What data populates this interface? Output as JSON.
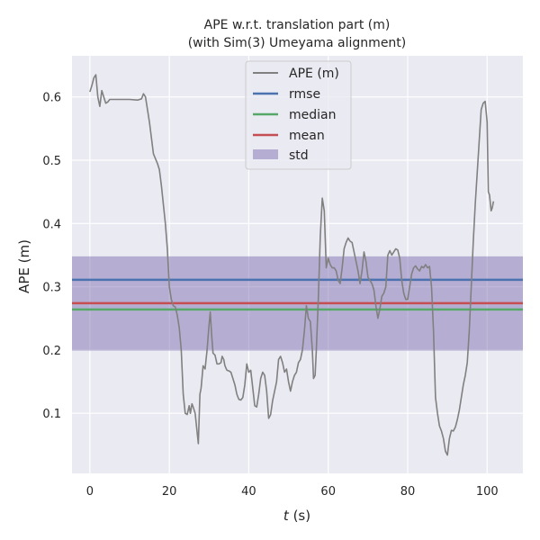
{
  "chart_data": {
    "type": "line",
    "title": "APE w.r.t. translation part (m)",
    "subtitle": "(with Sim(3) Umeyama alignment)",
    "xlabel_var": "t",
    "xlabel_unit": " (s)",
    "ylabel": "APE (m)",
    "xlim": [
      -4.5,
      109
    ],
    "ylim": [
      0.005,
      0.665
    ],
    "x_ticks": [
      0,
      20,
      40,
      60,
      80,
      100
    ],
    "y_ticks": [
      0.1,
      0.2,
      0.3,
      0.4,
      0.5,
      0.6
    ],
    "grid": true,
    "legend_position": "top-center",
    "series": [
      {
        "name": "APE (m)",
        "color": "#808080",
        "points": [
          [
            0.0,
            0.608
          ],
          [
            0.5,
            0.618
          ],
          [
            1.0,
            0.63
          ],
          [
            1.5,
            0.635
          ],
          [
            2.0,
            0.6
          ],
          [
            2.5,
            0.585
          ],
          [
            3.0,
            0.61
          ],
          [
            3.5,
            0.6
          ],
          [
            4.0,
            0.59
          ],
          [
            4.5,
            0.592
          ],
          [
            5.0,
            0.596
          ],
          [
            6.0,
            0.596
          ],
          [
            8.0,
            0.596
          ],
          [
            10.0,
            0.596
          ],
          [
            12.0,
            0.595
          ],
          [
            13.0,
            0.597
          ],
          [
            13.5,
            0.605
          ],
          [
            14.0,
            0.6
          ],
          [
            15.0,
            0.56
          ],
          [
            16.0,
            0.51
          ],
          [
            17.0,
            0.495
          ],
          [
            17.5,
            0.485
          ],
          [
            18.0,
            0.46
          ],
          [
            19.0,
            0.4
          ],
          [
            19.5,
            0.36
          ],
          [
            20.0,
            0.3
          ],
          [
            20.5,
            0.28
          ],
          [
            21.0,
            0.27
          ],
          [
            21.5,
            0.268
          ],
          [
            22.0,
            0.255
          ],
          [
            22.5,
            0.235
          ],
          [
            23.0,
            0.2
          ],
          [
            23.5,
            0.13
          ],
          [
            24.0,
            0.1
          ],
          [
            24.5,
            0.098
          ],
          [
            25.0,
            0.112
          ],
          [
            25.3,
            0.1
          ],
          [
            25.7,
            0.115
          ],
          [
            26.0,
            0.11
          ],
          [
            26.5,
            0.1
          ],
          [
            27.0,
            0.07
          ],
          [
            27.3,
            0.052
          ],
          [
            27.7,
            0.13
          ],
          [
            28.0,
            0.14
          ],
          [
            28.5,
            0.175
          ],
          [
            29.0,
            0.17
          ],
          [
            29.5,
            0.2
          ],
          [
            30.0,
            0.24
          ],
          [
            30.3,
            0.26
          ],
          [
            30.7,
            0.22
          ],
          [
            31.0,
            0.195
          ],
          [
            31.5,
            0.192
          ],
          [
            32.0,
            0.178
          ],
          [
            32.5,
            0.178
          ],
          [
            33.0,
            0.18
          ],
          [
            33.3,
            0.19
          ],
          [
            33.7,
            0.185
          ],
          [
            34.0,
            0.175
          ],
          [
            34.5,
            0.168
          ],
          [
            35.0,
            0.167
          ],
          [
            35.5,
            0.165
          ],
          [
            36.0,
            0.155
          ],
          [
            36.5,
            0.145
          ],
          [
            37.0,
            0.13
          ],
          [
            37.5,
            0.122
          ],
          [
            38.0,
            0.121
          ],
          [
            38.5,
            0.125
          ],
          [
            39.0,
            0.145
          ],
          [
            39.5,
            0.178
          ],
          [
            40.0,
            0.165
          ],
          [
            40.5,
            0.168
          ],
          [
            41.0,
            0.14
          ],
          [
            41.5,
            0.112
          ],
          [
            42.0,
            0.11
          ],
          [
            42.5,
            0.13
          ],
          [
            43.0,
            0.155
          ],
          [
            43.5,
            0.165
          ],
          [
            44.0,
            0.16
          ],
          [
            44.5,
            0.135
          ],
          [
            45.0,
            0.092
          ],
          [
            45.5,
            0.098
          ],
          [
            46.0,
            0.12
          ],
          [
            46.5,
            0.135
          ],
          [
            47.0,
            0.15
          ],
          [
            47.5,
            0.185
          ],
          [
            48.0,
            0.19
          ],
          [
            48.5,
            0.18
          ],
          [
            49.0,
            0.165
          ],
          [
            49.5,
            0.17
          ],
          [
            50.0,
            0.15
          ],
          [
            50.5,
            0.135
          ],
          [
            51.0,
            0.15
          ],
          [
            51.5,
            0.16
          ],
          [
            52.0,
            0.165
          ],
          [
            52.5,
            0.18
          ],
          [
            53.0,
            0.185
          ],
          [
            53.5,
            0.2
          ],
          [
            54.0,
            0.23
          ],
          [
            54.5,
            0.27
          ],
          [
            55.0,
            0.25
          ],
          [
            55.5,
            0.245
          ],
          [
            56.0,
            0.2
          ],
          [
            56.3,
            0.155
          ],
          [
            56.7,
            0.16
          ],
          [
            57.0,
            0.2
          ],
          [
            57.5,
            0.28
          ],
          [
            58.0,
            0.38
          ],
          [
            58.5,
            0.44
          ],
          [
            59.0,
            0.42
          ],
          [
            59.5,
            0.33
          ],
          [
            60.0,
            0.345
          ],
          [
            60.5,
            0.335
          ],
          [
            61.0,
            0.33
          ],
          [
            61.5,
            0.33
          ],
          [
            62.0,
            0.325
          ],
          [
            62.5,
            0.31
          ],
          [
            63.0,
            0.305
          ],
          [
            63.5,
            0.33
          ],
          [
            64.0,
            0.36
          ],
          [
            64.5,
            0.37
          ],
          [
            65.0,
            0.377
          ],
          [
            65.5,
            0.372
          ],
          [
            66.0,
            0.37
          ],
          [
            66.5,
            0.355
          ],
          [
            67.0,
            0.34
          ],
          [
            67.5,
            0.325
          ],
          [
            68.0,
            0.305
          ],
          [
            68.5,
            0.325
          ],
          [
            69.0,
            0.355
          ],
          [
            69.5,
            0.34
          ],
          [
            70.0,
            0.315
          ],
          [
            70.5,
            0.31
          ],
          [
            71.0,
            0.305
          ],
          [
            71.5,
            0.295
          ],
          [
            72.0,
            0.27
          ],
          [
            72.5,
            0.25
          ],
          [
            73.0,
            0.265
          ],
          [
            73.5,
            0.285
          ],
          [
            74.0,
            0.29
          ],
          [
            74.5,
            0.3
          ],
          [
            75.0,
            0.35
          ],
          [
            75.5,
            0.357
          ],
          [
            76.0,
            0.35
          ],
          [
            76.5,
            0.355
          ],
          [
            77.0,
            0.36
          ],
          [
            77.5,
            0.358
          ],
          [
            78.0,
            0.345
          ],
          [
            78.5,
            0.31
          ],
          [
            79.0,
            0.29
          ],
          [
            79.5,
            0.28
          ],
          [
            80.0,
            0.28
          ],
          [
            80.5,
            0.3
          ],
          [
            81.0,
            0.32
          ],
          [
            81.5,
            0.33
          ],
          [
            82.0,
            0.333
          ],
          [
            82.5,
            0.328
          ],
          [
            83.0,
            0.325
          ],
          [
            83.5,
            0.332
          ],
          [
            84.0,
            0.33
          ],
          [
            84.5,
            0.335
          ],
          [
            85.0,
            0.33
          ],
          [
            85.5,
            0.332
          ],
          [
            86.0,
            0.3
          ],
          [
            86.5,
            0.23
          ],
          [
            87.0,
            0.125
          ],
          [
            87.5,
            0.1
          ],
          [
            88.0,
            0.08
          ],
          [
            88.5,
            0.072
          ],
          [
            89.0,
            0.06
          ],
          [
            89.5,
            0.04
          ],
          [
            90.0,
            0.034
          ],
          [
            90.5,
            0.06
          ],
          [
            91.0,
            0.073
          ],
          [
            91.5,
            0.072
          ],
          [
            92.0,
            0.078
          ],
          [
            92.5,
            0.09
          ],
          [
            93.0,
            0.105
          ],
          [
            93.5,
            0.125
          ],
          [
            94.0,
            0.145
          ],
          [
            94.5,
            0.16
          ],
          [
            95.0,
            0.18
          ],
          [
            95.5,
            0.23
          ],
          [
            96.0,
            0.3
          ],
          [
            96.5,
            0.37
          ],
          [
            97.0,
            0.43
          ],
          [
            97.5,
            0.48
          ],
          [
            98.0,
            0.53
          ],
          [
            98.5,
            0.58
          ],
          [
            99.0,
            0.59
          ],
          [
            99.5,
            0.593
          ],
          [
            100.0,
            0.56
          ],
          [
            100.3,
            0.45
          ],
          [
            100.6,
            0.445
          ],
          [
            101.0,
            0.42
          ],
          [
            101.3,
            0.425
          ],
          [
            101.6,
            0.435
          ]
        ]
      }
    ],
    "stats": {
      "rmse": {
        "name": "rmse",
        "value": 0.311,
        "color": "#4c72b0"
      },
      "median": {
        "name": "median",
        "value": 0.264,
        "color": "#55a868"
      },
      "mean": {
        "name": "mean",
        "value": 0.274,
        "color": "#c44e52"
      },
      "std": {
        "name": "std",
        "low": 0.199,
        "high": 0.348,
        "color": "#8172b2"
      }
    },
    "colors": {
      "plot_background": "#eaeaf2",
      "grid": "#ffffff",
      "text": "#262626"
    }
  }
}
